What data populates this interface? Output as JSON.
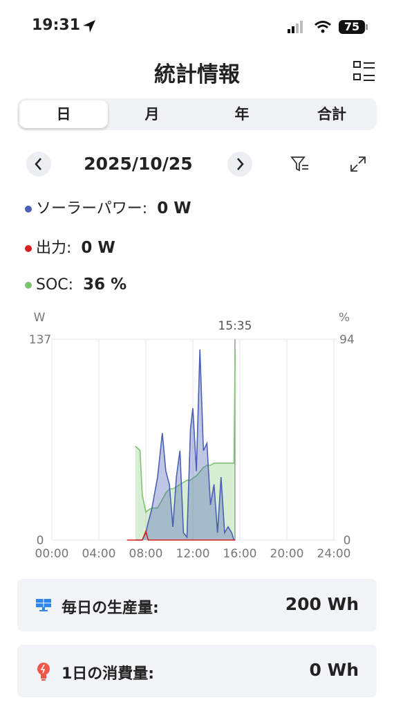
{
  "status_bar": {
    "time": "19:31",
    "battery": "75"
  },
  "header": {
    "title": "統計情報"
  },
  "tabs": [
    "日",
    "月",
    "年",
    "合計"
  ],
  "date_nav": {
    "date": "2025/10/25"
  },
  "chart_data": {
    "type": "line",
    "x": [
      6.4,
      7.1,
      7.5,
      7.7,
      8.0,
      8.2,
      8.5,
      9.0,
      9.4,
      9.7,
      10.0,
      10.3,
      10.6,
      10.9,
      11.2,
      11.5,
      11.8,
      12.0,
      12.3,
      12.6,
      12.9,
      13.2,
      13.5,
      13.8,
      14.1,
      14.4,
      14.7,
      15.0,
      15.3,
      15.5,
      15.6
    ],
    "series": [
      {
        "name": "ソーラーパワー:",
        "readout": "0 W",
        "color": "#4a5fb5",
        "values": [
          null,
          0,
          0,
          0,
          5,
          12,
          21,
          43,
          73,
          47,
          38,
          9,
          43,
          61,
          5,
          2,
          76,
          90,
          47,
          130,
          61,
          66,
          24,
          38,
          5,
          43,
          5,
          9,
          5,
          0,
          0
        ]
      },
      {
        "name": "出力:",
        "readout": "0 W",
        "color": "#d81e1e",
        "values": [
          0,
          0,
          0,
          0,
          6,
          0,
          0,
          0,
          0,
          0,
          0,
          0,
          0,
          0,
          0,
          0,
          0,
          0,
          0,
          0,
          0,
          0,
          0,
          0,
          0,
          0,
          0,
          0,
          0,
          0,
          0
        ]
      },
      {
        "name": "SOC:",
        "readout": "36 %",
        "color": "#7cc46f",
        "axis": "y2",
        "values": [
          null,
          44,
          42,
          21,
          13,
          14,
          15,
          15,
          19,
          22,
          24,
          24,
          25,
          26,
          27,
          28,
          28,
          29,
          30,
          32,
          34,
          35,
          35,
          36,
          36,
          36,
          36,
          36,
          36,
          36,
          89
        ]
      }
    ],
    "y_unit": "W",
    "y2_unit": "%",
    "xlim": [
      0,
      24
    ],
    "xticks": [
      {
        "value": 0,
        "label": "00:00"
      },
      {
        "value": 4,
        "label": "04:00"
      },
      {
        "value": 8,
        "label": "08:00"
      },
      {
        "value": 12,
        "label": "12:00"
      },
      {
        "value": 16,
        "label": "16:00"
      },
      {
        "value": 20,
        "label": "20:00"
      },
      {
        "value": 24,
        "label": "24:00"
      }
    ],
    "ylim": [
      0,
      137
    ],
    "yticks": [
      0,
      137
    ],
    "y2lim": [
      0,
      94
    ],
    "y2ticks": [
      0,
      94
    ],
    "cursor": {
      "value": 15.583,
      "label": "15:35"
    },
    "grid": true
  },
  "cards": [
    {
      "label": "毎日の生産量:",
      "value": "200 Wh"
    },
    {
      "label": "1日の消費量:",
      "value": "0 Wh"
    }
  ]
}
